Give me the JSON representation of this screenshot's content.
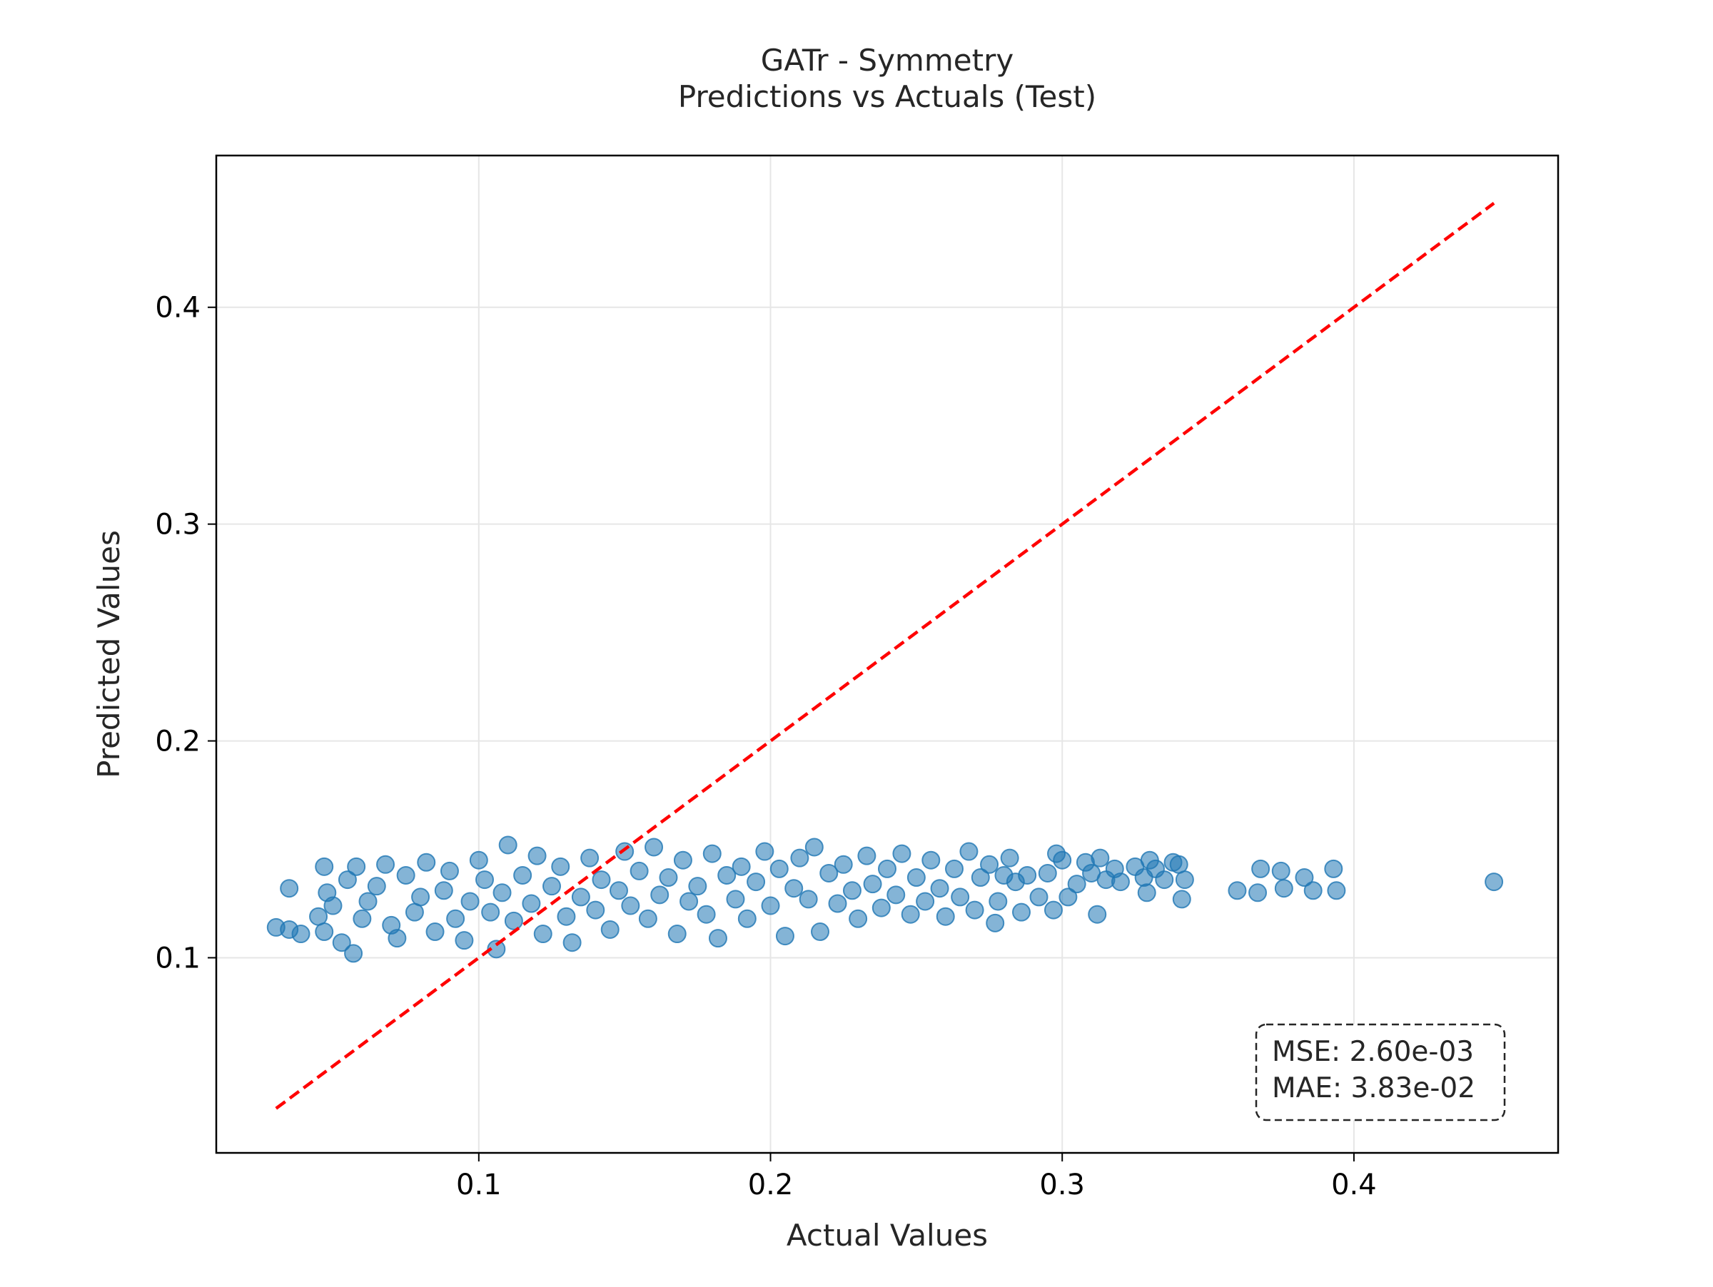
{
  "chart_data": {
    "type": "scatter",
    "title": "GATr - Symmetry\nPredictions vs Actuals (Test)",
    "title_lines": [
      "GATr - Symmetry",
      "Predictions vs Actuals (Test)"
    ],
    "xlabel": "Actual Values",
    "ylabel": "Predicted Values",
    "xlim": [
      0.01,
      0.47
    ],
    "ylim": [
      0.01,
      0.47
    ],
    "xticks": [
      0.1,
      0.2,
      0.3,
      0.4
    ],
    "yticks": [
      0.1,
      0.2,
      0.3,
      0.4
    ],
    "xtick_labels": [
      "0.1",
      "0.2",
      "0.3",
      "0.4"
    ],
    "ytick_labels": [
      "0.1",
      "0.2",
      "0.3",
      "0.4"
    ],
    "grid": true,
    "point_color": "#1f77b4",
    "point_alpha": 0.55,
    "reference_line": {
      "style": "dashed",
      "color": "#ff0000",
      "x": [
        0.0305,
        0.448
      ],
      "y": [
        0.0305,
        0.448
      ]
    },
    "stats_box": {
      "placement": "bottom-right",
      "lines": [
        "MSE: 2.60e-03",
        "MAE: 3.83e-02"
      ]
    },
    "points": [
      [
        0.0305,
        0.114
      ],
      [
        0.035,
        0.113
      ],
      [
        0.039,
        0.111
      ],
      [
        0.035,
        0.132
      ],
      [
        0.045,
        0.119
      ],
      [
        0.047,
        0.112
      ],
      [
        0.047,
        0.142
      ],
      [
        0.048,
        0.13
      ],
      [
        0.05,
        0.124
      ],
      [
        0.053,
        0.107
      ],
      [
        0.055,
        0.136
      ],
      [
        0.057,
        0.102
      ],
      [
        0.058,
        0.142
      ],
      [
        0.06,
        0.118
      ],
      [
        0.062,
        0.126
      ],
      [
        0.065,
        0.133
      ],
      [
        0.068,
        0.143
      ],
      [
        0.07,
        0.115
      ],
      [
        0.072,
        0.109
      ],
      [
        0.075,
        0.138
      ],
      [
        0.078,
        0.121
      ],
      [
        0.08,
        0.128
      ],
      [
        0.082,
        0.144
      ],
      [
        0.085,
        0.112
      ],
      [
        0.088,
        0.131
      ],
      [
        0.09,
        0.14
      ],
      [
        0.092,
        0.118
      ],
      [
        0.095,
        0.108
      ],
      [
        0.097,
        0.126
      ],
      [
        0.1,
        0.145
      ],
      [
        0.102,
        0.136
      ],
      [
        0.104,
        0.121
      ],
      [
        0.106,
        0.104
      ],
      [
        0.108,
        0.13
      ],
      [
        0.11,
        0.152
      ],
      [
        0.112,
        0.117
      ],
      [
        0.115,
        0.138
      ],
      [
        0.118,
        0.125
      ],
      [
        0.12,
        0.147
      ],
      [
        0.122,
        0.111
      ],
      [
        0.125,
        0.133
      ],
      [
        0.128,
        0.142
      ],
      [
        0.13,
        0.119
      ],
      [
        0.132,
        0.107
      ],
      [
        0.135,
        0.128
      ],
      [
        0.138,
        0.146
      ],
      [
        0.14,
        0.122
      ],
      [
        0.142,
        0.136
      ],
      [
        0.145,
        0.113
      ],
      [
        0.148,
        0.131
      ],
      [
        0.15,
        0.149
      ],
      [
        0.152,
        0.124
      ],
      [
        0.155,
        0.14
      ],
      [
        0.158,
        0.118
      ],
      [
        0.16,
        0.151
      ],
      [
        0.162,
        0.129
      ],
      [
        0.165,
        0.137
      ],
      [
        0.168,
        0.111
      ],
      [
        0.17,
        0.145
      ],
      [
        0.172,
        0.126
      ],
      [
        0.175,
        0.133
      ],
      [
        0.178,
        0.12
      ],
      [
        0.18,
        0.148
      ],
      [
        0.182,
        0.109
      ],
      [
        0.185,
        0.138
      ],
      [
        0.188,
        0.127
      ],
      [
        0.19,
        0.142
      ],
      [
        0.192,
        0.118
      ],
      [
        0.195,
        0.135
      ],
      [
        0.198,
        0.149
      ],
      [
        0.2,
        0.124
      ],
      [
        0.203,
        0.141
      ],
      [
        0.205,
        0.11
      ],
      [
        0.208,
        0.132
      ],
      [
        0.21,
        0.146
      ],
      [
        0.213,
        0.127
      ],
      [
        0.215,
        0.151
      ],
      [
        0.217,
        0.112
      ],
      [
        0.22,
        0.139
      ],
      [
        0.223,
        0.125
      ],
      [
        0.225,
        0.143
      ],
      [
        0.228,
        0.131
      ],
      [
        0.23,
        0.118
      ],
      [
        0.233,
        0.147
      ],
      [
        0.235,
        0.134
      ],
      [
        0.238,
        0.123
      ],
      [
        0.24,
        0.141
      ],
      [
        0.243,
        0.129
      ],
      [
        0.245,
        0.148
      ],
      [
        0.248,
        0.12
      ],
      [
        0.25,
        0.137
      ],
      [
        0.253,
        0.126
      ],
      [
        0.255,
        0.145
      ],
      [
        0.258,
        0.132
      ],
      [
        0.26,
        0.119
      ],
      [
        0.263,
        0.141
      ],
      [
        0.265,
        0.128
      ],
      [
        0.268,
        0.149
      ],
      [
        0.27,
        0.122
      ],
      [
        0.272,
        0.137
      ],
      [
        0.275,
        0.143
      ],
      [
        0.277,
        0.116
      ],
      [
        0.278,
        0.126
      ],
      [
        0.28,
        0.138
      ],
      [
        0.282,
        0.146
      ],
      [
        0.284,
        0.135
      ],
      [
        0.286,
        0.121
      ],
      [
        0.288,
        0.138
      ],
      [
        0.292,
        0.128
      ],
      [
        0.295,
        0.139
      ],
      [
        0.297,
        0.122
      ],
      [
        0.298,
        0.148
      ],
      [
        0.3,
        0.145
      ],
      [
        0.302,
        0.128
      ],
      [
        0.305,
        0.134
      ],
      [
        0.308,
        0.144
      ],
      [
        0.31,
        0.139
      ],
      [
        0.312,
        0.12
      ],
      [
        0.313,
        0.146
      ],
      [
        0.315,
        0.136
      ],
      [
        0.318,
        0.141
      ],
      [
        0.32,
        0.135
      ],
      [
        0.325,
        0.142
      ],
      [
        0.328,
        0.137
      ],
      [
        0.329,
        0.13
      ],
      [
        0.33,
        0.145
      ],
      [
        0.332,
        0.141
      ],
      [
        0.335,
        0.136
      ],
      [
        0.338,
        0.144
      ],
      [
        0.34,
        0.143
      ],
      [
        0.341,
        0.127
      ],
      [
        0.342,
        0.136
      ],
      [
        0.36,
        0.131
      ],
      [
        0.367,
        0.13
      ],
      [
        0.368,
        0.141
      ],
      [
        0.375,
        0.14
      ],
      [
        0.376,
        0.132
      ],
      [
        0.383,
        0.137
      ],
      [
        0.386,
        0.131
      ],
      [
        0.393,
        0.141
      ],
      [
        0.394,
        0.131
      ],
      [
        0.448,
        0.135
      ]
    ]
  }
}
